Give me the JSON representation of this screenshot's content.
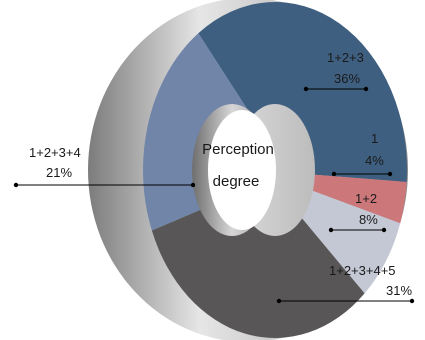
{
  "chart_data": {
    "type": "pie",
    "style": "3d-donut",
    "center_label_lines": [
      "Perception",
      "degree"
    ],
    "slices": [
      {
        "label": "1+2+3",
        "value": 36,
        "value_text": "36%",
        "color": "#3f5f80"
      },
      {
        "label": "1",
        "value": 4,
        "value_text": "4%",
        "color": "#cc787a"
      },
      {
        "label": "1+2",
        "value": 8,
        "value_text": "8%",
        "color": "#c4c8d4"
      },
      {
        "label": "1+2+3+4+5",
        "value": 31,
        "value_text": "31%",
        "color": "#585656"
      },
      {
        "label": "1+2+3+4",
        "value": 21,
        "value_text": "21%",
        "color": "#7085a8"
      }
    ],
    "title": "",
    "legend": "none"
  }
}
